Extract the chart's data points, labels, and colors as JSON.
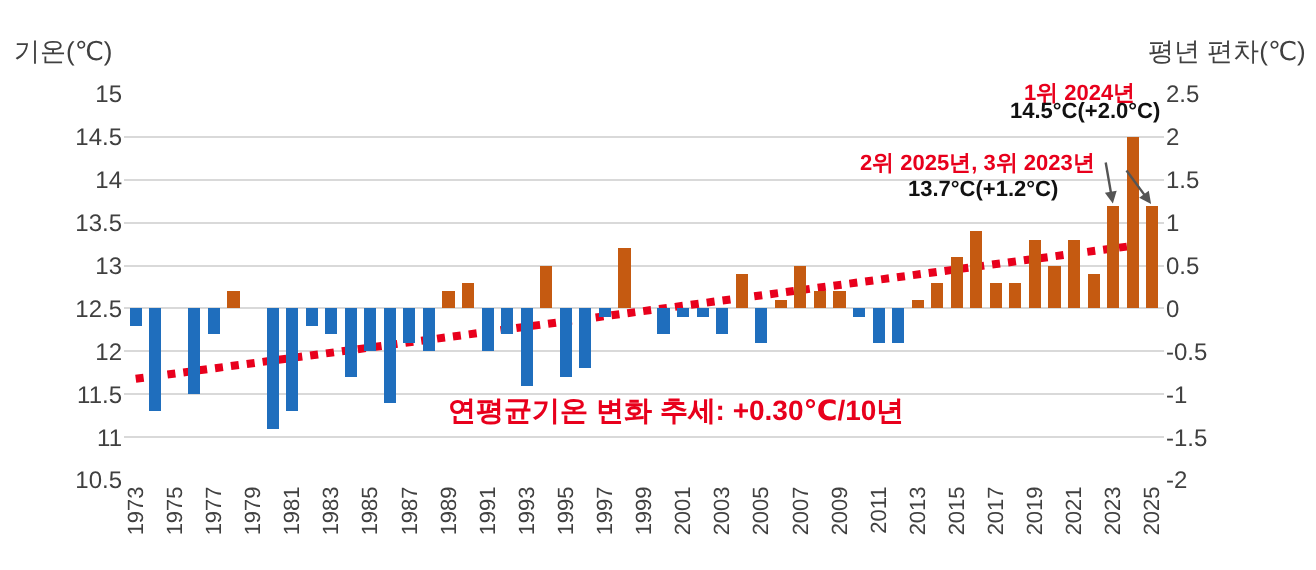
{
  "chart_data": {
    "type": "bar",
    "ylabel": "기온(℃)",
    "y2label": "평년 편차(℃)",
    "x": [
      1973,
      1974,
      1975,
      1976,
      1977,
      1978,
      1979,
      1980,
      1981,
      1982,
      1983,
      1984,
      1985,
      1986,
      1987,
      1988,
      1989,
      1990,
      1991,
      1992,
      1993,
      1994,
      1995,
      1996,
      1997,
      1998,
      1999,
      2000,
      2001,
      2002,
      2003,
      2004,
      2005,
      2006,
      2007,
      2008,
      2009,
      2010,
      2011,
      2012,
      2013,
      2014,
      2015,
      2016,
      2017,
      2018,
      2019,
      2020,
      2021,
      2022,
      2023,
      2024,
      2025
    ],
    "series": [
      {
        "axis": "y2",
        "values": [
          -0.2,
          -1.2,
          0,
          -1.0,
          -0.3,
          0.2,
          0,
          -1.4,
          -1.2,
          -0.2,
          -0.3,
          -0.8,
          -0.5,
          -1.1,
          -0.4,
          -0.5,
          0.2,
          0.3,
          -0.5,
          -0.3,
          -0.9,
          0.5,
          -0.8,
          -0.7,
          -0.1,
          0.7,
          0,
          -0.3,
          -0.1,
          -0.1,
          -0.3,
          0.4,
          -0.4,
          0.1,
          0.5,
          0.2,
          0.2,
          -0.1,
          -0.4,
          -0.4,
          0.1,
          0.3,
          0.6,
          0.9,
          0.3,
          0.3,
          0.8,
          0.5,
          0.8,
          0.4,
          1.2,
          2.0,
          1.2
        ],
        "colors": [
          "#1f6ebd",
          "#1f6ebd",
          "#1f6ebd",
          "#1f6ebd",
          "#1f6ebd",
          "#c55a11",
          "#1f6ebd",
          "#1f6ebd",
          "#1f6ebd",
          "#1f6ebd",
          "#1f6ebd",
          "#1f6ebd",
          "#1f6ebd",
          "#1f6ebd",
          "#1f6ebd",
          "#1f6ebd",
          "#c55a11",
          "#c55a11",
          "#1f6ebd",
          "#1f6ebd",
          "#1f6ebd",
          "#c55a11",
          "#1f6ebd",
          "#1f6ebd",
          "#1f6ebd",
          "#c55a11",
          "#1f6ebd",
          "#1f6ebd",
          "#1f6ebd",
          "#1f6ebd",
          "#1f6ebd",
          "#c55a11",
          "#1f6ebd",
          "#c55a11",
          "#c55a11",
          "#c55a11",
          "#c55a11",
          "#1f6ebd",
          "#1f6ebd",
          "#1f6ebd",
          "#c55a11",
          "#c55a11",
          "#c55a11",
          "#c55a11",
          "#c55a11",
          "#c55a11",
          "#c55a11",
          "#c55a11",
          "#c55a11",
          "#c55a11",
          "#c55a11",
          "#c55a11",
          "#c55a11"
        ]
      },
      {
        "type": "line",
        "x": [
          1973,
          2024
        ],
        "values": [
          11.68,
          13.23
        ],
        "color": "#e8001c",
        "line_style": "dotted"
      }
    ],
    "xlim": [
      1972.4,
      2025.6
    ],
    "xticks": [
      1973,
      1975,
      1977,
      1979,
      1981,
      1983,
      1985,
      1987,
      1989,
      1991,
      1993,
      1995,
      1997,
      1999,
      2001,
      2003,
      2005,
      2007,
      2009,
      2011,
      2013,
      2015,
      2017,
      2019,
      2021,
      2023,
      2025
    ],
    "ylim": [
      10.5,
      15
    ],
    "yticks": [
      10.5,
      11,
      11.5,
      12,
      12.5,
      13,
      13.5,
      14,
      14.5,
      15
    ],
    "y2lim": [
      -2,
      2.5
    ],
    "y2ticks": [
      -2,
      -1.5,
      -1,
      -0.5,
      0,
      0.5,
      1,
      1.5,
      2,
      2.5
    ],
    "grid": "y",
    "annotations": [
      "연평균기온 변화 추세: +0.30℃/10년",
      "1위 2024년",
      {
        "text": "14.5°C(+2.0°C)",
        "x": 2024,
        "y": 14.5
      },
      "2위 2025년, 3위 2023년",
      {
        "text": "13.7°C(+1.2°C)",
        "x": 2023,
        "y": 13.7
      }
    ]
  }
}
